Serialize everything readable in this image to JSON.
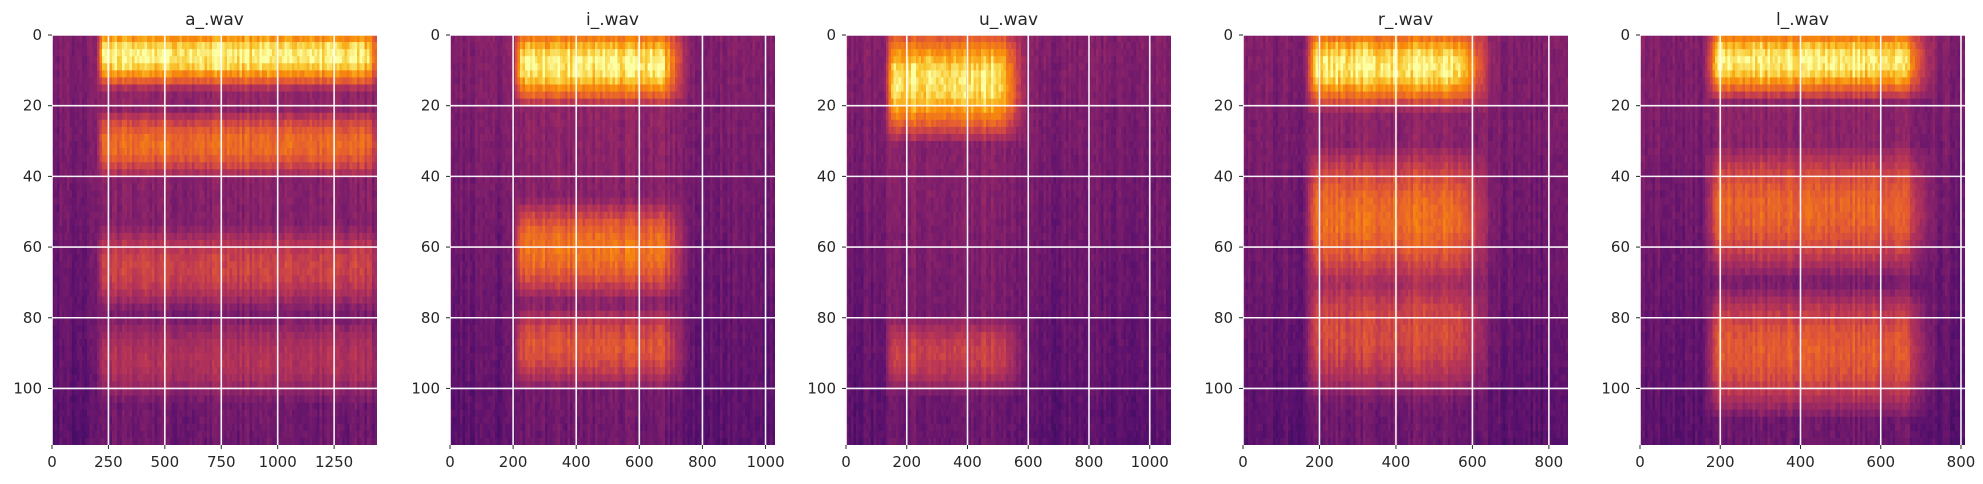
{
  "chart_data": [
    {
      "type": "heatmap",
      "title": "a_.wav",
      "xlim": [
        0,
        1440
      ],
      "ylim": [
        116,
        0
      ],
      "xticks": [
        0,
        250,
        500,
        750,
        1000,
        1250
      ],
      "yticks": [
        0,
        20,
        40,
        60,
        80,
        100
      ],
      "colormap": "inferno",
      "onset": 205,
      "offset": 1440,
      "bands": [
        [
          0,
          12,
          1.0
        ],
        [
          25,
          37,
          0.62
        ],
        [
          58,
          74,
          0.45
        ],
        [
          84,
          100,
          0.35
        ]
      ]
    },
    {
      "type": "heatmap",
      "title": "i_.wav",
      "xlim": [
        0,
        1030
      ],
      "ylim": [
        116,
        0
      ],
      "xticks": [
        0,
        200,
        400,
        600,
        800,
        1000
      ],
      "yticks": [
        0,
        20,
        40,
        60,
        80,
        100
      ],
      "colormap": "inferno",
      "onset": 205,
      "offset": 720,
      "bands": [
        [
          0,
          17,
          1.0
        ],
        [
          50,
          72,
          0.72
        ],
        [
          80,
          97,
          0.6
        ]
      ]
    },
    {
      "type": "heatmap",
      "title": "u_.wav",
      "xlim": [
        0,
        1070
      ],
      "ylim": [
        116,
        0
      ],
      "xticks": [
        0,
        200,
        400,
        600,
        800,
        1000
      ],
      "yticks": [
        0,
        20,
        40,
        60,
        80,
        100
      ],
      "colormap": "inferno",
      "onset": 135,
      "offset": 560,
      "bands": [
        [
          0,
          27,
          1.0
        ],
        [
          83,
          98,
          0.5
        ]
      ]
    },
    {
      "type": "heatmap",
      "title": "r_.wav",
      "xlim": [
        0,
        850
      ],
      "ylim": [
        116,
        0
      ],
      "xticks": [
        0,
        200,
        400,
        600,
        800
      ],
      "yticks": [
        0,
        20,
        40,
        60,
        80,
        100
      ],
      "colormap": "inferno",
      "onset": 170,
      "offset": 620,
      "bands": [
        [
          0,
          18,
          1.0
        ],
        [
          35,
          70,
          0.68
        ],
        [
          70,
          100,
          0.55
        ]
      ]
    },
    {
      "type": "heatmap",
      "title": "l_.wav",
      "xlim": [
        0,
        810
      ],
      "ylim": [
        116,
        0
      ],
      "xticks": [
        0,
        200,
        400,
        600,
        800
      ],
      "yticks": [
        0,
        20,
        40,
        60,
        80,
        100
      ],
      "colormap": "inferno",
      "onset": 170,
      "offset": 700,
      "bands": [
        [
          0,
          15,
          1.0
        ],
        [
          35,
          65,
          0.62
        ],
        [
          75,
          105,
          0.65
        ]
      ]
    }
  ]
}
